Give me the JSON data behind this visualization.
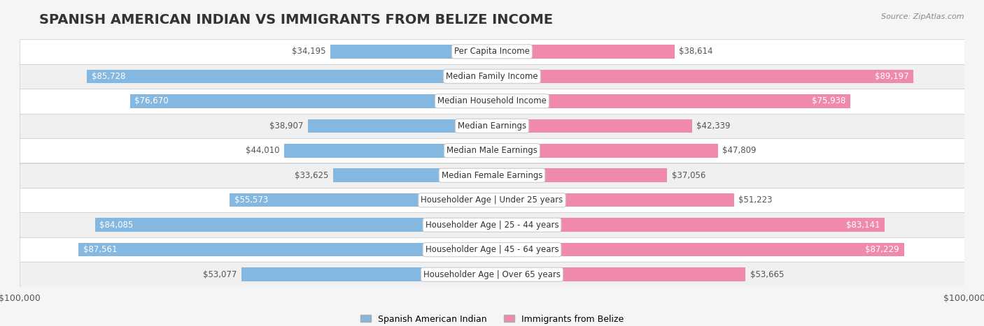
{
  "title": "SPANISH AMERICAN INDIAN VS IMMIGRANTS FROM BELIZE INCOME",
  "source": "Source: ZipAtlas.com",
  "categories": [
    "Per Capita Income",
    "Median Family Income",
    "Median Household Income",
    "Median Earnings",
    "Median Male Earnings",
    "Median Female Earnings",
    "Householder Age | Under 25 years",
    "Householder Age | 25 - 44 years",
    "Householder Age | 45 - 64 years",
    "Householder Age | Over 65 years"
  ],
  "left_values": [
    34195,
    85728,
    76670,
    38907,
    44010,
    33625,
    55573,
    84085,
    87561,
    53077
  ],
  "right_values": [
    38614,
    89197,
    75938,
    42339,
    47809,
    37056,
    51223,
    83141,
    87229,
    53665
  ],
  "left_labels": [
    "$34,195",
    "$85,728",
    "$76,670",
    "$38,907",
    "$44,010",
    "$33,625",
    "$55,573",
    "$84,085",
    "$87,561",
    "$53,077"
  ],
  "right_labels": [
    "$38,614",
    "$89,197",
    "$75,938",
    "$42,339",
    "$47,809",
    "$37,056",
    "$51,223",
    "$83,141",
    "$87,229",
    "$53,665"
  ],
  "left_color": "#85b8e0",
  "right_color": "#f08aaa",
  "max_value": 100000,
  "legend_left": "Spanish American Indian",
  "legend_right": "Immigrants from Belize",
  "bg_color": "#f5f5f5",
  "row_bg_color": "#ffffff",
  "row_alt_color": "#f0f0f0",
  "title_fontsize": 14,
  "label_fontsize": 8.5,
  "category_fontsize": 8.5
}
